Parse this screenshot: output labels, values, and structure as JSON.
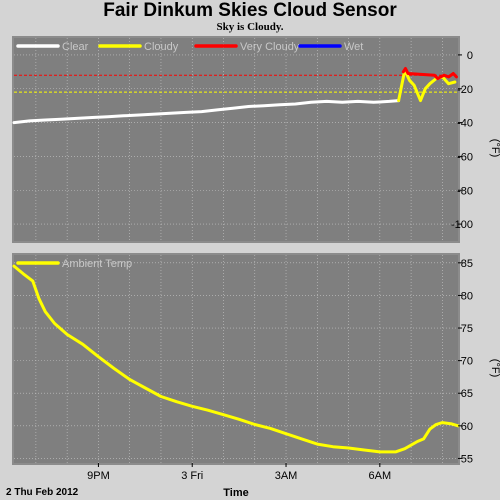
{
  "title": "Fair Dinkum Skies Cloud Sensor",
  "status": "Sky is Cloudy.",
  "colors": {
    "background": "#d4d4d4",
    "plot_bg": "#7f7f7f",
    "grid": "#c8c8c8",
    "clear": "#ffffff",
    "cloudy": "#ffff00",
    "very_cloudy": "#ff0000",
    "wet": "#0000ff",
    "ambient": "#ffff00"
  },
  "chart_data": [
    {
      "type": "line",
      "name": "sky-temperature",
      "ylabel": "(°F)",
      "ylim": [
        -110,
        10
      ],
      "yticks": [
        0,
        -20,
        -40,
        -60,
        -80,
        -100
      ],
      "ytick_labels": [
        "0",
        "-20",
        "-40",
        "-60",
        "-80",
        "-100"
      ],
      "xlim": [
        18.3,
        32.5
      ],
      "grid": true,
      "legend_position": "top-left",
      "legend": [
        {
          "label": "Clear",
          "color": "#ffffff"
        },
        {
          "label": "Cloudy",
          "color": "#ffff00"
        },
        {
          "label": "Very Cloudy",
          "color": "#ff0000"
        },
        {
          "label": "Wet",
          "color": "#0000ff"
        }
      ],
      "thresholds": [
        {
          "value": -12,
          "color": "#ff0000",
          "style": "dashed"
        },
        {
          "value": -22,
          "color": "#ffff00",
          "style": "dashed"
        }
      ],
      "series": [
        {
          "name": "Clear",
          "color": "#ffffff",
          "x": [
            18.3,
            18.8,
            19.3,
            19.8,
            20.3,
            20.8,
            21.3,
            21.8,
            22.3,
            22.8,
            23.3,
            23.8,
            24.3,
            24.8,
            25.3,
            25.8,
            26.3,
            26.8,
            27.3,
            27.8,
            28.3,
            28.8,
            29.3,
            29.8,
            30.3,
            30.6
          ],
          "y": [
            -40,
            -39,
            -38.5,
            -38,
            -37.5,
            -37,
            -36.5,
            -36,
            -35.5,
            -35,
            -34.5,
            -34,
            -33.5,
            -32.5,
            -31.5,
            -30.5,
            -30,
            -29.5,
            -29,
            -28,
            -27.5,
            -28,
            -27.5,
            -28,
            -27.5,
            -27
          ]
        },
        {
          "name": "Cloudy",
          "color": "#ffff00",
          "x": [
            30.6,
            30.8,
            30.95,
            31.1,
            31.3,
            31.45,
            31.6,
            31.8,
            32.0,
            32.2,
            32.4
          ],
          "y": [
            -27,
            -9,
            -15,
            -18,
            -27,
            -20,
            -17,
            -14,
            -13,
            -17,
            -16
          ]
        },
        {
          "name": "Very Cloudy",
          "color": "#ff0000",
          "x": [
            30.75,
            30.82,
            30.9,
            31.75,
            31.85,
            32.05,
            32.2,
            32.35,
            32.45
          ],
          "y": [
            -10,
            -8,
            -11,
            -12,
            -14,
            -12,
            -13,
            -11,
            -13
          ]
        }
      ]
    },
    {
      "type": "line",
      "name": "ambient-temperature",
      "ylabel": "(°F)",
      "ylim": [
        54.3,
        86.2
      ],
      "yticks": [
        55,
        60,
        65,
        70,
        75,
        80,
        85
      ],
      "ytick_labels": [
        "55",
        "60",
        "65",
        "70",
        "75",
        "80",
        "85"
      ],
      "xlim": [
        18.3,
        32.5
      ],
      "xticks": [
        21,
        24,
        27,
        30
      ],
      "xtick_labels": [
        "9PM",
        "3 Fri",
        "3AM",
        "6AM"
      ],
      "date_label": "2 Thu Feb 2012",
      "xlabel": "Time",
      "grid": true,
      "legend_position": "top-left",
      "legend": [
        {
          "label": "Ambient Temp",
          "color": "#ffff00"
        }
      ],
      "series": [
        {
          "name": "Ambient Temp",
          "color": "#ffff00",
          "x": [
            18.3,
            18.6,
            18.9,
            19.1,
            19.3,
            19.6,
            20.0,
            20.5,
            21.0,
            21.5,
            22.0,
            22.5,
            23.0,
            23.5,
            24.0,
            24.5,
            25.0,
            25.5,
            26.0,
            26.5,
            27.0,
            27.5,
            28.0,
            28.5,
            29.0,
            29.5,
            30.0,
            30.5,
            30.8,
            31.2,
            31.4,
            31.6,
            31.8,
            32.0,
            32.3,
            32.5
          ],
          "y": [
            84.5,
            83.3,
            82.2,
            79.5,
            77.5,
            75.7,
            74.0,
            72.5,
            70.6,
            68.8,
            67.1,
            65.8,
            64.5,
            63.7,
            63.0,
            62.4,
            61.7,
            61.0,
            60.2,
            59.6,
            58.8,
            58.0,
            57.2,
            56.8,
            56.6,
            56.3,
            56.0,
            56.0,
            56.5,
            57.6,
            58.0,
            59.5,
            60.2,
            60.5,
            60.3,
            60.0
          ]
        }
      ]
    }
  ]
}
